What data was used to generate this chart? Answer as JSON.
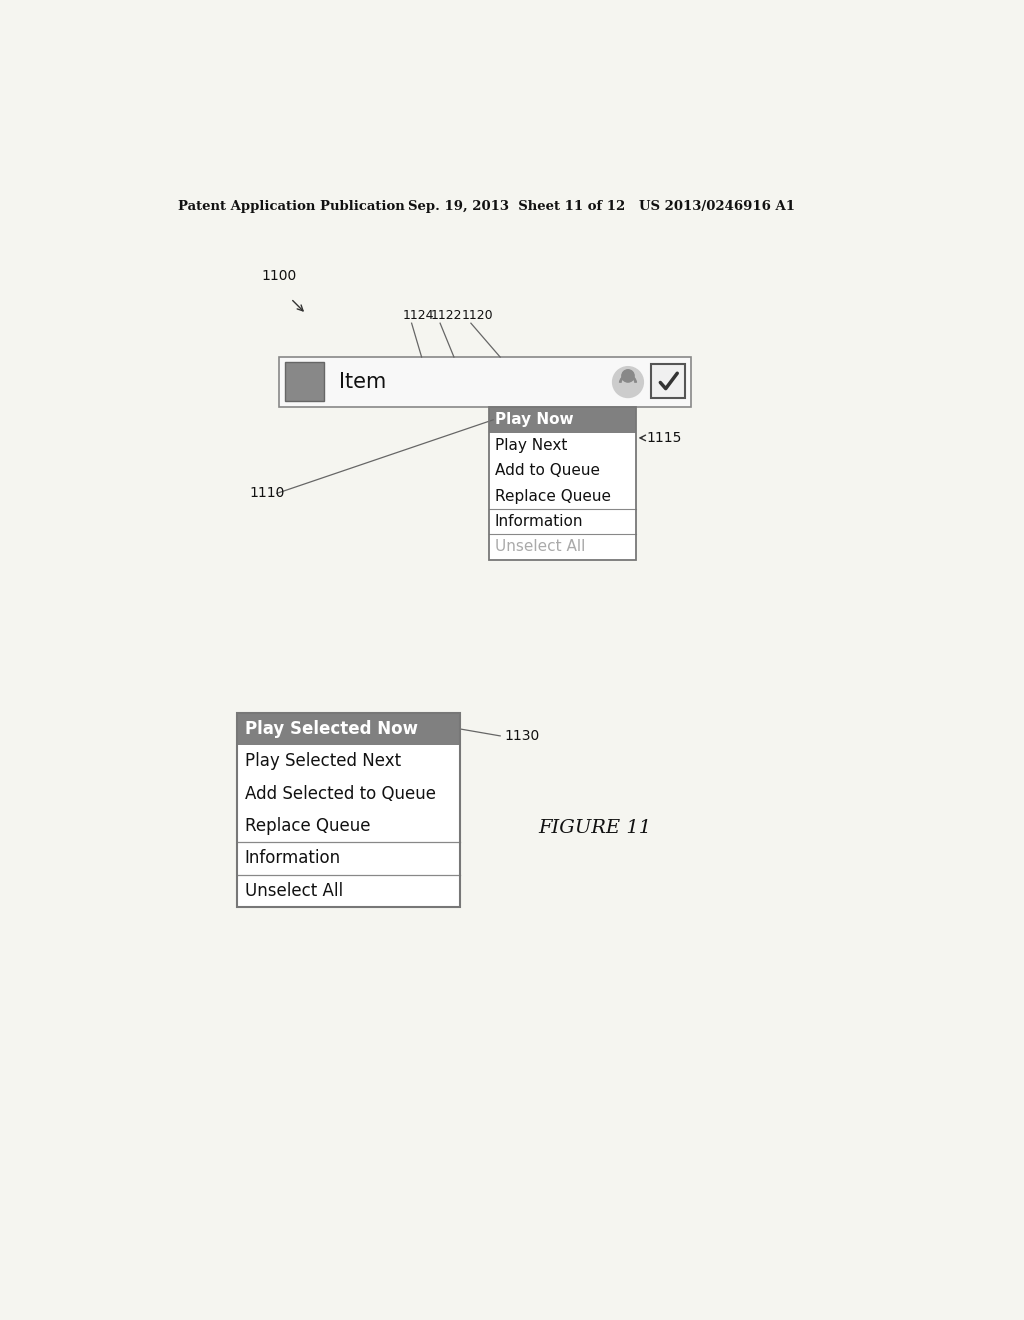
{
  "header_left": "Patent Application Publication",
  "header_mid": "Sep. 19, 2013  Sheet 11 of 12",
  "header_right": "US 2013/0246916 A1",
  "bg_color": "#f5f5f0",
  "label_1100": "1100",
  "label_1110": "1110",
  "label_1115": "1115",
  "label_1120": "1120",
  "label_1122": "1122",
  "label_1124": "1124",
  "label_1130": "1130",
  "figure_label": "FIGURE 11",
  "menu1_header": "Play Now",
  "menu1_items": [
    "Play Next",
    "Add to Queue",
    "Replace Queue"
  ],
  "menu1_sep_items": [
    "Information"
  ],
  "menu1_gray_items": [
    "Unselect All"
  ],
  "menu2_header": "Play Selected Now",
  "menu2_items": [
    "Play Selected Next",
    "Add Selected to Queue",
    "Replace Queue"
  ],
  "menu2_sep_items": [
    "Information"
  ],
  "menu2_last_items": [
    "Unselect All"
  ],
  "header_bg": "#808080",
  "header_text_color": "#ffffff",
  "menu_bg": "#ffffff",
  "menu_border": "#777777",
  "item_text_color": "#111111",
  "gray_text_color": "#aaaaaa",
  "separator_color": "#888888",
  "icon_fill": "#888888",
  "icon_border": "#666666"
}
